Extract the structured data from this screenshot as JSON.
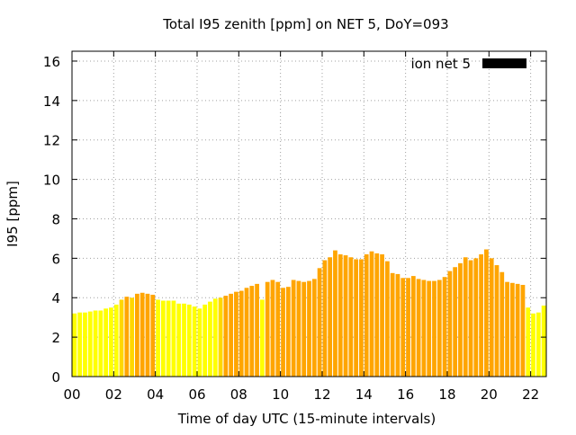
{
  "chart_data": {
    "type": "bar",
    "title": "Total I95 zenith [ppm] on NET 5, DoY=093",
    "xlabel": "Time of day UTC (15-minute intervals)",
    "ylabel": "I95 [ppm]",
    "xlim": [
      0,
      22.75
    ],
    "ylim": [
      0,
      16.5
    ],
    "xticks": [
      "00",
      "02",
      "04",
      "06",
      "08",
      "10",
      "12",
      "14",
      "16",
      "18",
      "20",
      "22"
    ],
    "yticks": [
      "0",
      "2",
      "4",
      "6",
      "8",
      "10",
      "12",
      "14",
      "16"
    ],
    "grid": true,
    "grid_style": "dotted",
    "legend": {
      "label": "ion net 5",
      "color": "#000000",
      "placement": "top-right"
    },
    "colors": {
      "low": "#ffff00",
      "mid": "#ffd700",
      "high": "#ffa500"
    },
    "interval_hours": 0.25,
    "x": [
      0,
      0.25,
      0.5,
      0.75,
      1,
      1.25,
      1.5,
      1.75,
      2,
      2.25,
      2.5,
      2.75,
      3,
      3.25,
      3.5,
      3.75,
      4,
      4.25,
      4.5,
      4.75,
      5,
      5.25,
      5.5,
      5.75,
      6,
      6.25,
      6.5,
      6.75,
      7,
      7.25,
      7.5,
      7.75,
      8,
      8.25,
      8.5,
      8.75,
      9,
      9.25,
      9.5,
      9.75,
      10,
      10.25,
      10.5,
      10.75,
      11,
      11.25,
      11.5,
      11.75,
      12,
      12.25,
      12.5,
      12.75,
      13,
      13.25,
      13.5,
      13.75,
      14,
      14.25,
      14.5,
      14.75,
      15,
      15.25,
      15.5,
      15.75,
      16,
      16.25,
      16.5,
      16.75,
      17,
      17.25,
      17.5,
      17.75,
      18,
      18.25,
      18.5,
      18.75,
      19,
      19.25,
      19.5,
      19.75,
      20,
      20.25,
      20.5,
      20.75,
      21,
      21.25,
      21.5,
      21.75,
      22,
      22.25,
      22.5
    ],
    "values": [
      3.2,
      3.25,
      3.25,
      3.3,
      3.35,
      3.35,
      3.45,
      3.5,
      3.65,
      3.9,
      4.05,
      4.0,
      4.2,
      4.25,
      4.2,
      4.15,
      3.9,
      3.85,
      3.85,
      3.85,
      3.7,
      3.7,
      3.65,
      3.55,
      3.45,
      3.65,
      3.8,
      3.95,
      4.0,
      4.1,
      4.2,
      4.3,
      4.35,
      4.5,
      4.6,
      4.7,
      3.9,
      4.8,
      4.9,
      4.8,
      4.5,
      4.55,
      4.9,
      4.85,
      4.8,
      4.85,
      4.95,
      5.5,
      5.9,
      6.05,
      6.4,
      6.2,
      6.15,
      6.05,
      5.95,
      5.95,
      6.2,
      6.35,
      6.25,
      6.2,
      5.85,
      5.25,
      5.2,
      5.0,
      5.0,
      5.1,
      4.95,
      4.9,
      4.85,
      4.85,
      4.9,
      5.05,
      5.35,
      5.55,
      5.75,
      6.05,
      5.9,
      6.0,
      6.2,
      6.45,
      6.0,
      5.65,
      5.3,
      4.8,
      4.75,
      4.7,
      4.65,
      3.5,
      3.2,
      3.25,
      3.6
    ],
    "bar_colors": [
      "low",
      "low",
      "low",
      "low",
      "low",
      "low",
      "low",
      "low",
      "low",
      "mid",
      "high",
      "mid",
      "high",
      "high",
      "high",
      "high",
      "low",
      "low",
      "low",
      "low",
      "low",
      "low",
      "low",
      "low",
      "low",
      "low",
      "low",
      "low",
      "mid",
      "high",
      "high",
      "high",
      "high",
      "high",
      "high",
      "high",
      "low",
      "high",
      "high",
      "high",
      "high",
      "high",
      "high",
      "high",
      "high",
      "high",
      "high",
      "high",
      "high",
      "high",
      "high",
      "high",
      "high",
      "high",
      "high",
      "high",
      "high",
      "high",
      "high",
      "high",
      "high",
      "high",
      "high",
      "high",
      "high",
      "high",
      "high",
      "high",
      "high",
      "high",
      "high",
      "high",
      "high",
      "high",
      "high",
      "high",
      "high",
      "high",
      "high",
      "high",
      "high",
      "high",
      "high",
      "high",
      "high",
      "high",
      "high",
      "low",
      "low",
      "low",
      "low"
    ]
  }
}
